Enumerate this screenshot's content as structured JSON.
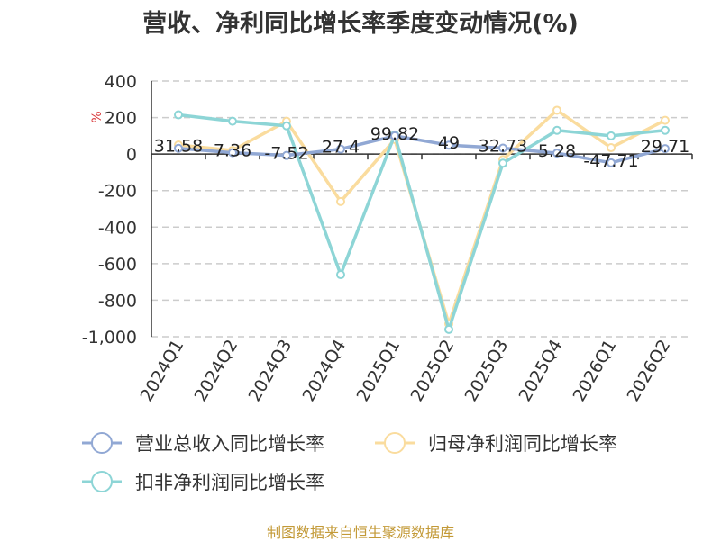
{
  "chart_data": {
    "type": "line",
    "title": "营收、净利同比增长率季度变动情况(%)",
    "ylabel": "%",
    "xlabel": "",
    "categories": [
      "2024Q1",
      "2024Q2",
      "2024Q3",
      "2024Q4",
      "2025Q1",
      "2025Q2",
      "2025Q3",
      "2025Q4",
      "2026Q1",
      "2026Q2"
    ],
    "ylim": [
      -1000,
      400
    ],
    "yticks": [
      400,
      200,
      0,
      -200,
      -400,
      -600,
      -800,
      -1000
    ],
    "ytick_labels": [
      "400",
      "200",
      "0",
      "-200",
      "-400",
      "-600",
      "-800",
      "-1,000"
    ],
    "grid": true,
    "legend_position": "bottom",
    "series": [
      {
        "name": "营业总收入同比增长率",
        "color": "#91a8d4",
        "values": [
          31.58,
          7.36,
          -7.52,
          27.4,
          99.82,
          49,
          32.73,
          5.28,
          -47.71,
          29.71
        ],
        "labels": [
          "31.58",
          "7.36",
          "-7.52",
          "27.4",
          "99.82",
          "49",
          "32.73",
          "5.28",
          "-47.71",
          "29.71"
        ]
      },
      {
        "name": "归母净利润同比增长率",
        "color": "#fadc9e",
        "values": [
          50,
          20,
          180,
          -260,
          80,
          -930,
          -30,
          240,
          35,
          185
        ]
      },
      {
        "name": "扣非净利润同比增长率",
        "color": "#8dd5d6",
        "values": [
          215,
          180,
          155,
          -660,
          105,
          -960,
          -50,
          130,
          100,
          130
        ]
      }
    ]
  },
  "source": "制图数据来自恒生聚源数据库"
}
